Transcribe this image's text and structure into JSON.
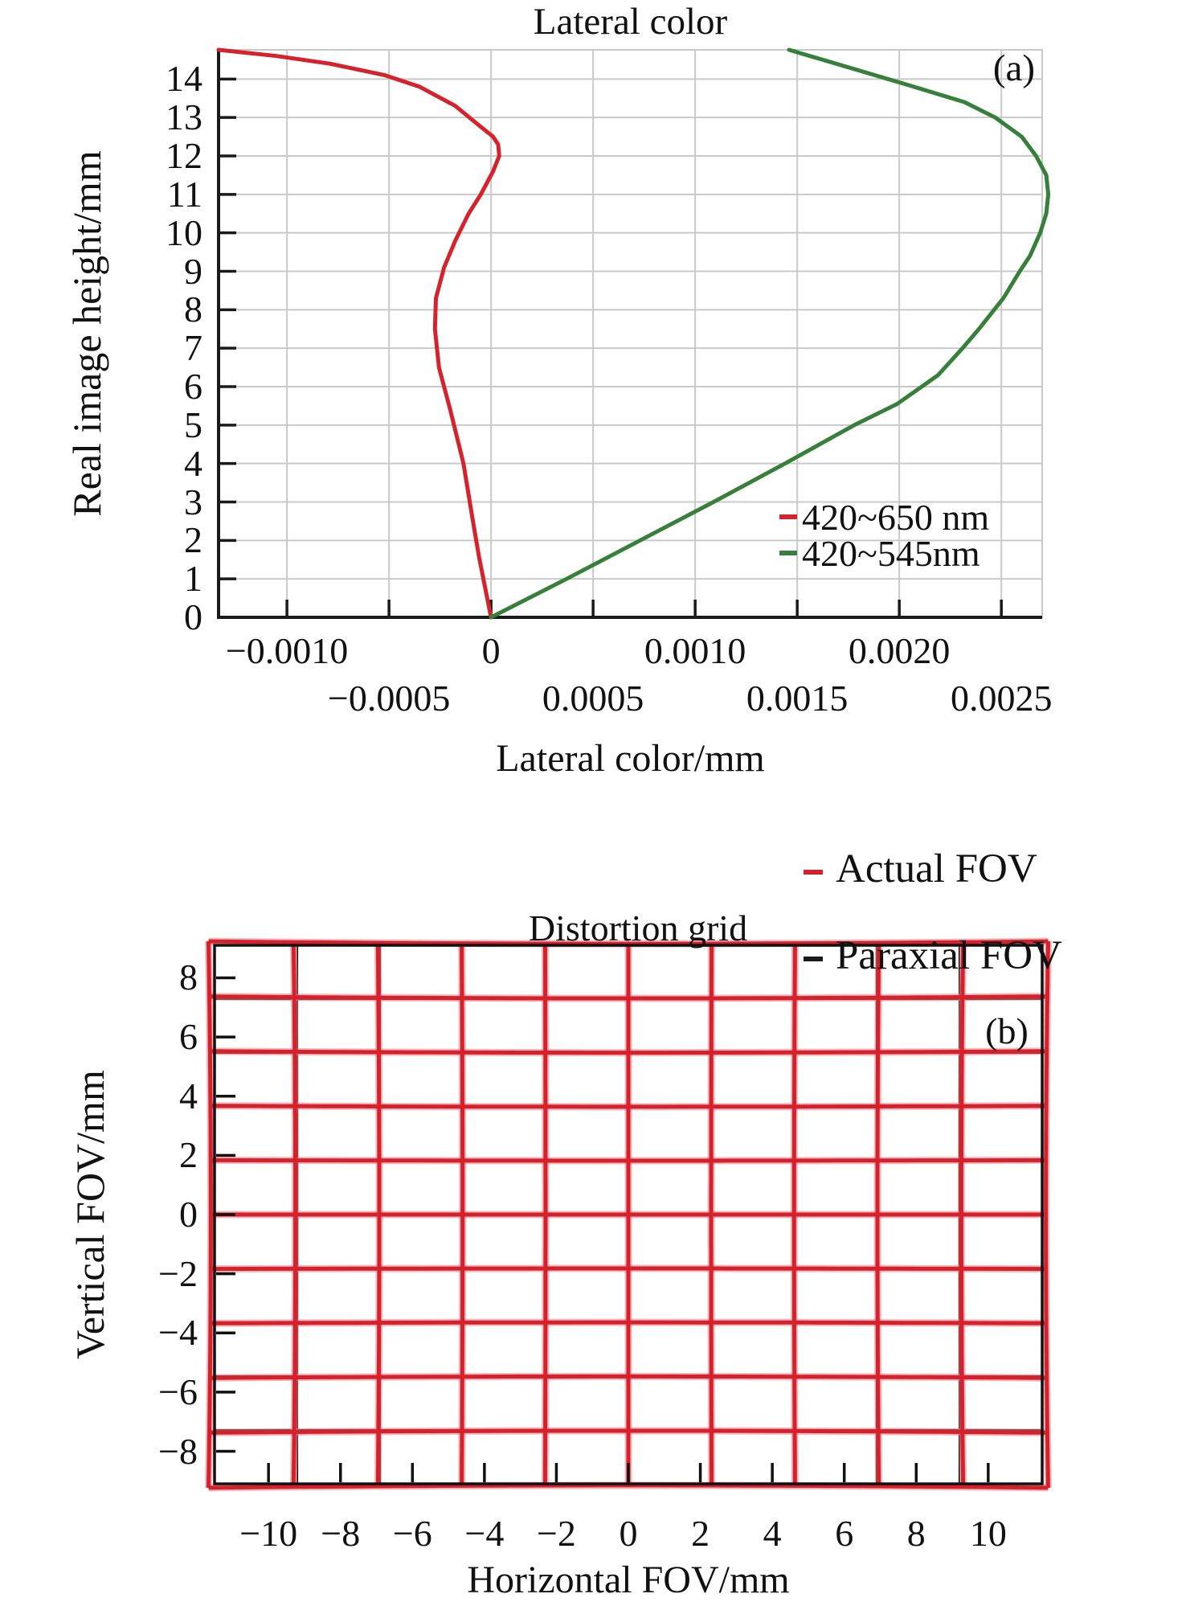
{
  "figure": {
    "panel_a": {
      "title": "Lateral color",
      "panel_label": "(a)",
      "xlabel": "Lateral color/mm",
      "ylabel": "Real image height/mm",
      "legend": [
        {
          "label": "420~650 nm",
          "color": "#d4232c"
        },
        {
          "label": "420~545nm",
          "color": "#377f3a"
        }
      ]
    },
    "panel_b": {
      "title": "Distortion grid",
      "panel_label": "(b)",
      "xlabel": "Horizontal FOV/mm",
      "ylabel": "Vertical FOV/mm",
      "legend": [
        {
          "label": "Actual FOV",
          "color": "#d5212b"
        },
        {
          "label": "Paraxial FOV",
          "color": "#1a1a1a"
        }
      ]
    }
  },
  "chart_data": [
    {
      "type": "line",
      "panel": "a",
      "title": "Lateral color",
      "xlabel": "Lateral color/mm",
      "ylabel": "Real image height/mm",
      "xlim": [
        -0.001335,
        0.0027
      ],
      "ylim": [
        0,
        14.76
      ],
      "grid": true,
      "grid_color": "#c9c9c9",
      "x_grid_values": [
        -0.001,
        -0.0005,
        0,
        0.0005,
        0.001,
        0.0015,
        0.002,
        0.0025
      ],
      "x_tick_rows": [
        {
          "values": [
            -0.001,
            0,
            0.001,
            0.002
          ],
          "labels": [
            "−0.0010",
            "0",
            "0.0010",
            "0.0020"
          ]
        },
        {
          "values": [
            -0.0005,
            0.0005,
            0.0015,
            0.0025
          ],
          "labels": [
            "−0.0005",
            "0.0005",
            "0.0015",
            "0.0025"
          ]
        }
      ],
      "y_ticks": {
        "values": [
          0,
          1,
          2,
          3,
          4,
          5,
          6,
          7,
          8,
          9,
          10,
          11,
          12,
          13,
          14
        ],
        "labels": [
          "0",
          "1",
          "2",
          "3",
          "4",
          "5",
          "6",
          "7",
          "8",
          "9",
          "10",
          "11",
          "12",
          "13",
          "14"
        ]
      },
      "legend_position": "inside lower right",
      "series": [
        {
          "name": "420~650 nm",
          "color": "#d4232c",
          "points": [
            [
              0,
              0
            ],
            [
              -6e-05,
              1.6
            ],
            [
              -9.5e-05,
              2.7
            ],
            [
              -0.000135,
              4.0
            ],
            [
              -0.0002,
              5.4
            ],
            [
              -0.000255,
              6.5
            ],
            [
              -0.000275,
              7.5
            ],
            [
              -0.00027,
              8.3
            ],
            [
              -0.00023,
              9.1
            ],
            [
              -0.000175,
              9.8
            ],
            [
              -0.00011,
              10.5
            ],
            [
              -5e-05,
              11.0
            ],
            [
              1e-05,
              11.6
            ],
            [
              4e-05,
              12.0
            ],
            [
              3.5e-05,
              12.3
            ],
            [
              1e-05,
              12.5
            ],
            [
              -6e-05,
              12.8
            ],
            [
              -0.000175,
              13.3
            ],
            [
              -0.00035,
              13.8
            ],
            [
              -0.00052,
              14.1
            ],
            [
              -0.00079,
              14.4
            ],
            [
              -0.00105,
              14.6
            ],
            [
              -0.001335,
              14.76
            ]
          ]
        },
        {
          "name": "420~545nm",
          "color": "#377f3a",
          "points": [
            [
              0,
              0
            ],
            [
              0.00037,
              1
            ],
            [
              0.00073,
              2
            ],
            [
              0.00109,
              3
            ],
            [
              0.00144,
              4
            ],
            [
              0.00178,
              5
            ],
            [
              0.00199,
              5.55
            ],
            [
              0.00219,
              6.3
            ],
            [
              0.00231,
              7
            ],
            [
              0.00239,
              7.5
            ],
            [
              0.00251,
              8.3
            ],
            [
              0.00259,
              9
            ],
            [
              0.00264,
              9.4
            ],
            [
              0.00269,
              10
            ],
            [
              0.00272,
              10.5
            ],
            [
              0.00273,
              11
            ],
            [
              0.00272,
              11.5
            ],
            [
              0.00267,
              12
            ],
            [
              0.0026,
              12.5
            ],
            [
              0.00247,
              13
            ],
            [
              0.00232,
              13.4
            ],
            [
              0.00204,
              13.85
            ],
            [
              0.00146,
              14.76
            ]
          ]
        }
      ]
    },
    {
      "type": "distortion_grid",
      "panel": "b",
      "title": "Distortion grid",
      "xlabel": "Horizontal FOV/mm",
      "ylabel": "Vertical FOV/mm",
      "xlim": [
        -11.5,
        11.5
      ],
      "ylim": [
        -9.1,
        9.1
      ],
      "x_ticks": {
        "values": [
          -10,
          -8,
          -6,
          -4,
          -2,
          0,
          2,
          4,
          6,
          8,
          10
        ],
        "labels": [
          "−10",
          "−8",
          "−6",
          "−4",
          "−2",
          "0",
          "2",
          "4",
          "6",
          "8",
          "10"
        ]
      },
      "y_ticks": {
        "values": [
          8,
          6,
          4,
          2,
          0,
          -2,
          -4,
          -6,
          -8
        ],
        "labels": [
          "8",
          "6",
          "4",
          "2",
          "0",
          "−2",
          "−4",
          "−6",
          "−8"
        ]
      },
      "grid_cols_mm": [
        -11.5,
        -9.2,
        -6.9,
        -4.6,
        -2.3,
        0,
        2.3,
        4.6,
        6.9,
        9.2,
        11.5
      ],
      "grid_rows_mm": [
        -9.1,
        -7.28,
        -5.46,
        -3.64,
        -1.82,
        0,
        1.82,
        3.64,
        5.46,
        7.28,
        9.1
      ],
      "series": [
        {
          "name": "Actual FOV",
          "color": "#d5212b",
          "halo_color": "rgba(233,125,135,0.55)",
          "distortion": "pincushion",
          "max_distortion_percent": 1.45
        },
        {
          "name": "Paraxial FOV",
          "color": "#1a1a1a",
          "distortion": "none"
        }
      ]
    }
  ]
}
